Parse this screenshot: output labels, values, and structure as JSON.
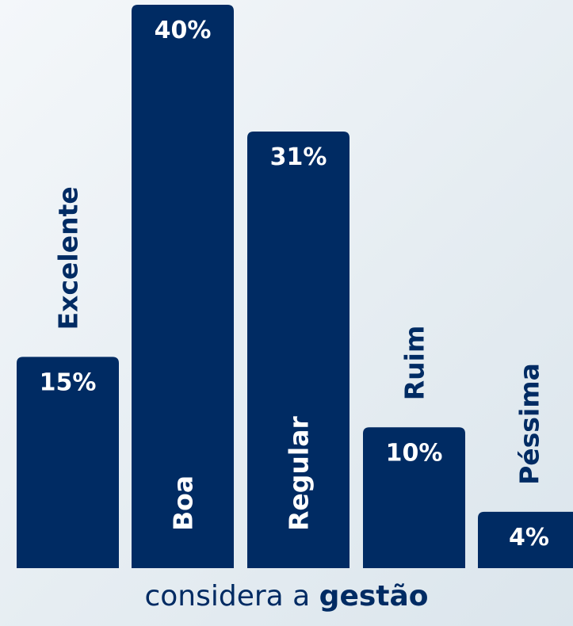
{
  "chart_data": {
    "type": "bar",
    "categories": [
      "Excelente",
      "Boa",
      "Regular",
      "Ruim",
      "Péssima"
    ],
    "values": [
      15,
      40,
      31,
      10,
      4
    ],
    "value_labels": [
      "15%",
      "40%",
      "31%",
      "10%",
      "4%"
    ],
    "title": "",
    "xlabel": "considera a gestão",
    "ylabel": "",
    "ylim": [
      0,
      40
    ],
    "grid": false,
    "legend": "none",
    "bar_color": "#002b63"
  },
  "caption": {
    "prefix": "considera a ",
    "emphasis": "gestão"
  }
}
